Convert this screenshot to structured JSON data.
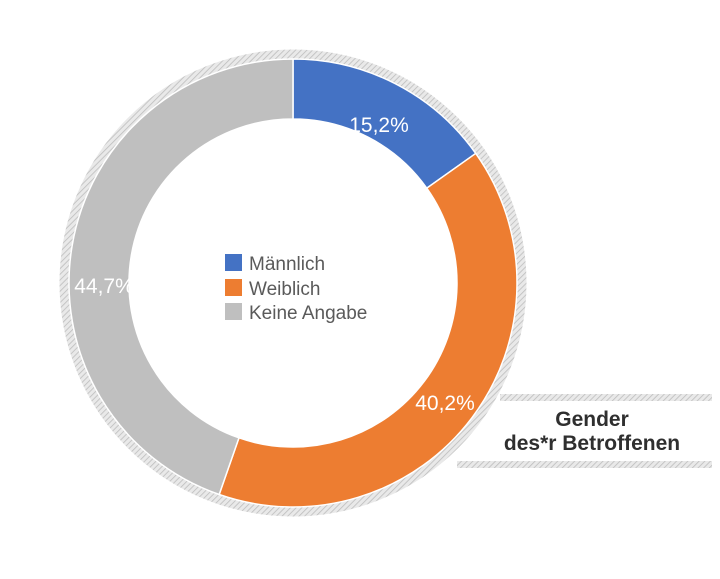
{
  "chart_data": {
    "type": "pie",
    "title_lines": [
      "Gender",
      "des*r Betroffenen"
    ],
    "categories": [
      "Männlich",
      "Weiblich",
      "Keine Angabe"
    ],
    "values": [
      15.2,
      40.2,
      44.7
    ],
    "value_labels": [
      "15,2%",
      "40,2%",
      "44,7%"
    ],
    "colors": [
      "#4472c4",
      "#ed7d31",
      "#bfbfbf"
    ],
    "donut": true,
    "legend_position": "center"
  }
}
